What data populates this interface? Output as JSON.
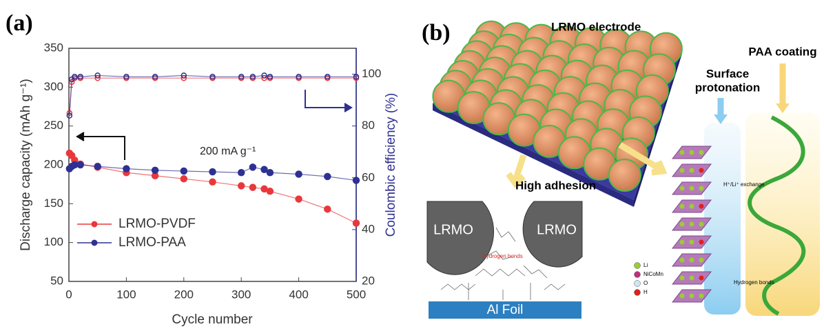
{
  "chart_data": {
    "type": "line",
    "panel_label": "(a)",
    "x_label": "Cycle number",
    "y_label": "Discharge capacity (mAh g⁻¹)",
    "y2_label": "Coulombic efficiency (%)",
    "annotation": "200 mA g⁻¹",
    "x": [
      1,
      5,
      10,
      20,
      50,
      100,
      150,
      200,
      250,
      300,
      320,
      340,
      350,
      400,
      450,
      500
    ],
    "series": [
      {
        "name": "LRMO-PVDF",
        "color": "#e8383d",
        "values": [
          215,
          212,
          206,
          201,
          197,
          190,
          186,
          182,
          178,
          173,
          171,
          169,
          166,
          156,
          143,
          125
        ],
        "y2_values": [
          85,
          97,
          98.5,
          98.5,
          98.5,
          98.5,
          98.5,
          98.5,
          98.5,
          98.5,
          98.5,
          98.5,
          98.5,
          98.5,
          98.5,
          98.5
        ]
      },
      {
        "name": "LRMO-PAA",
        "color": "#2e3192",
        "values": [
          195,
          198,
          200,
          200,
          198,
          195,
          193,
          192,
          191,
          190,
          197,
          194,
          190,
          188,
          185,
          180
        ],
        "y2_values": [
          84,
          98,
          99,
          99,
          99.5,
          99,
          99,
          99.5,
          99,
          99,
          99,
          99.5,
          99,
          99,
          99,
          99
        ]
      }
    ],
    "xlim": [
      0,
      500
    ],
    "xticks": [
      0,
      100,
      200,
      300,
      400,
      500
    ],
    "ylim": [
      50,
      350
    ],
    "yticks": [
      50,
      100,
      150,
      200,
      250,
      300,
      350
    ],
    "y2lim": [
      20,
      110
    ],
    "y2ticks": [
      20,
      40,
      60,
      80,
      100
    ],
    "y2_color": "#2e3192"
  },
  "diagram": {
    "panel_label": "(b)",
    "electrode_label": "LRMO electrode",
    "adhesion": {
      "title": "High adhesion",
      "particles": [
        "LRMO",
        "LRMO"
      ],
      "foil": "Al Foil",
      "bond_label": "Hydrogen bonds"
    },
    "interface": {
      "protonation": [
        "Surface",
        "protonation"
      ],
      "coating": "PAA coating",
      "exchange": "H⁺/Li⁺ exchange",
      "bond_label": "Hydrogen bonds",
      "legend": [
        {
          "label": "Li",
          "color": "#9acd32"
        },
        {
          "label": "NiCoMn",
          "color": "#c0307a"
        },
        {
          "label": "O",
          "color": "#cfe6f5"
        },
        {
          "label": "H",
          "color": "#e02020"
        }
      ]
    }
  }
}
